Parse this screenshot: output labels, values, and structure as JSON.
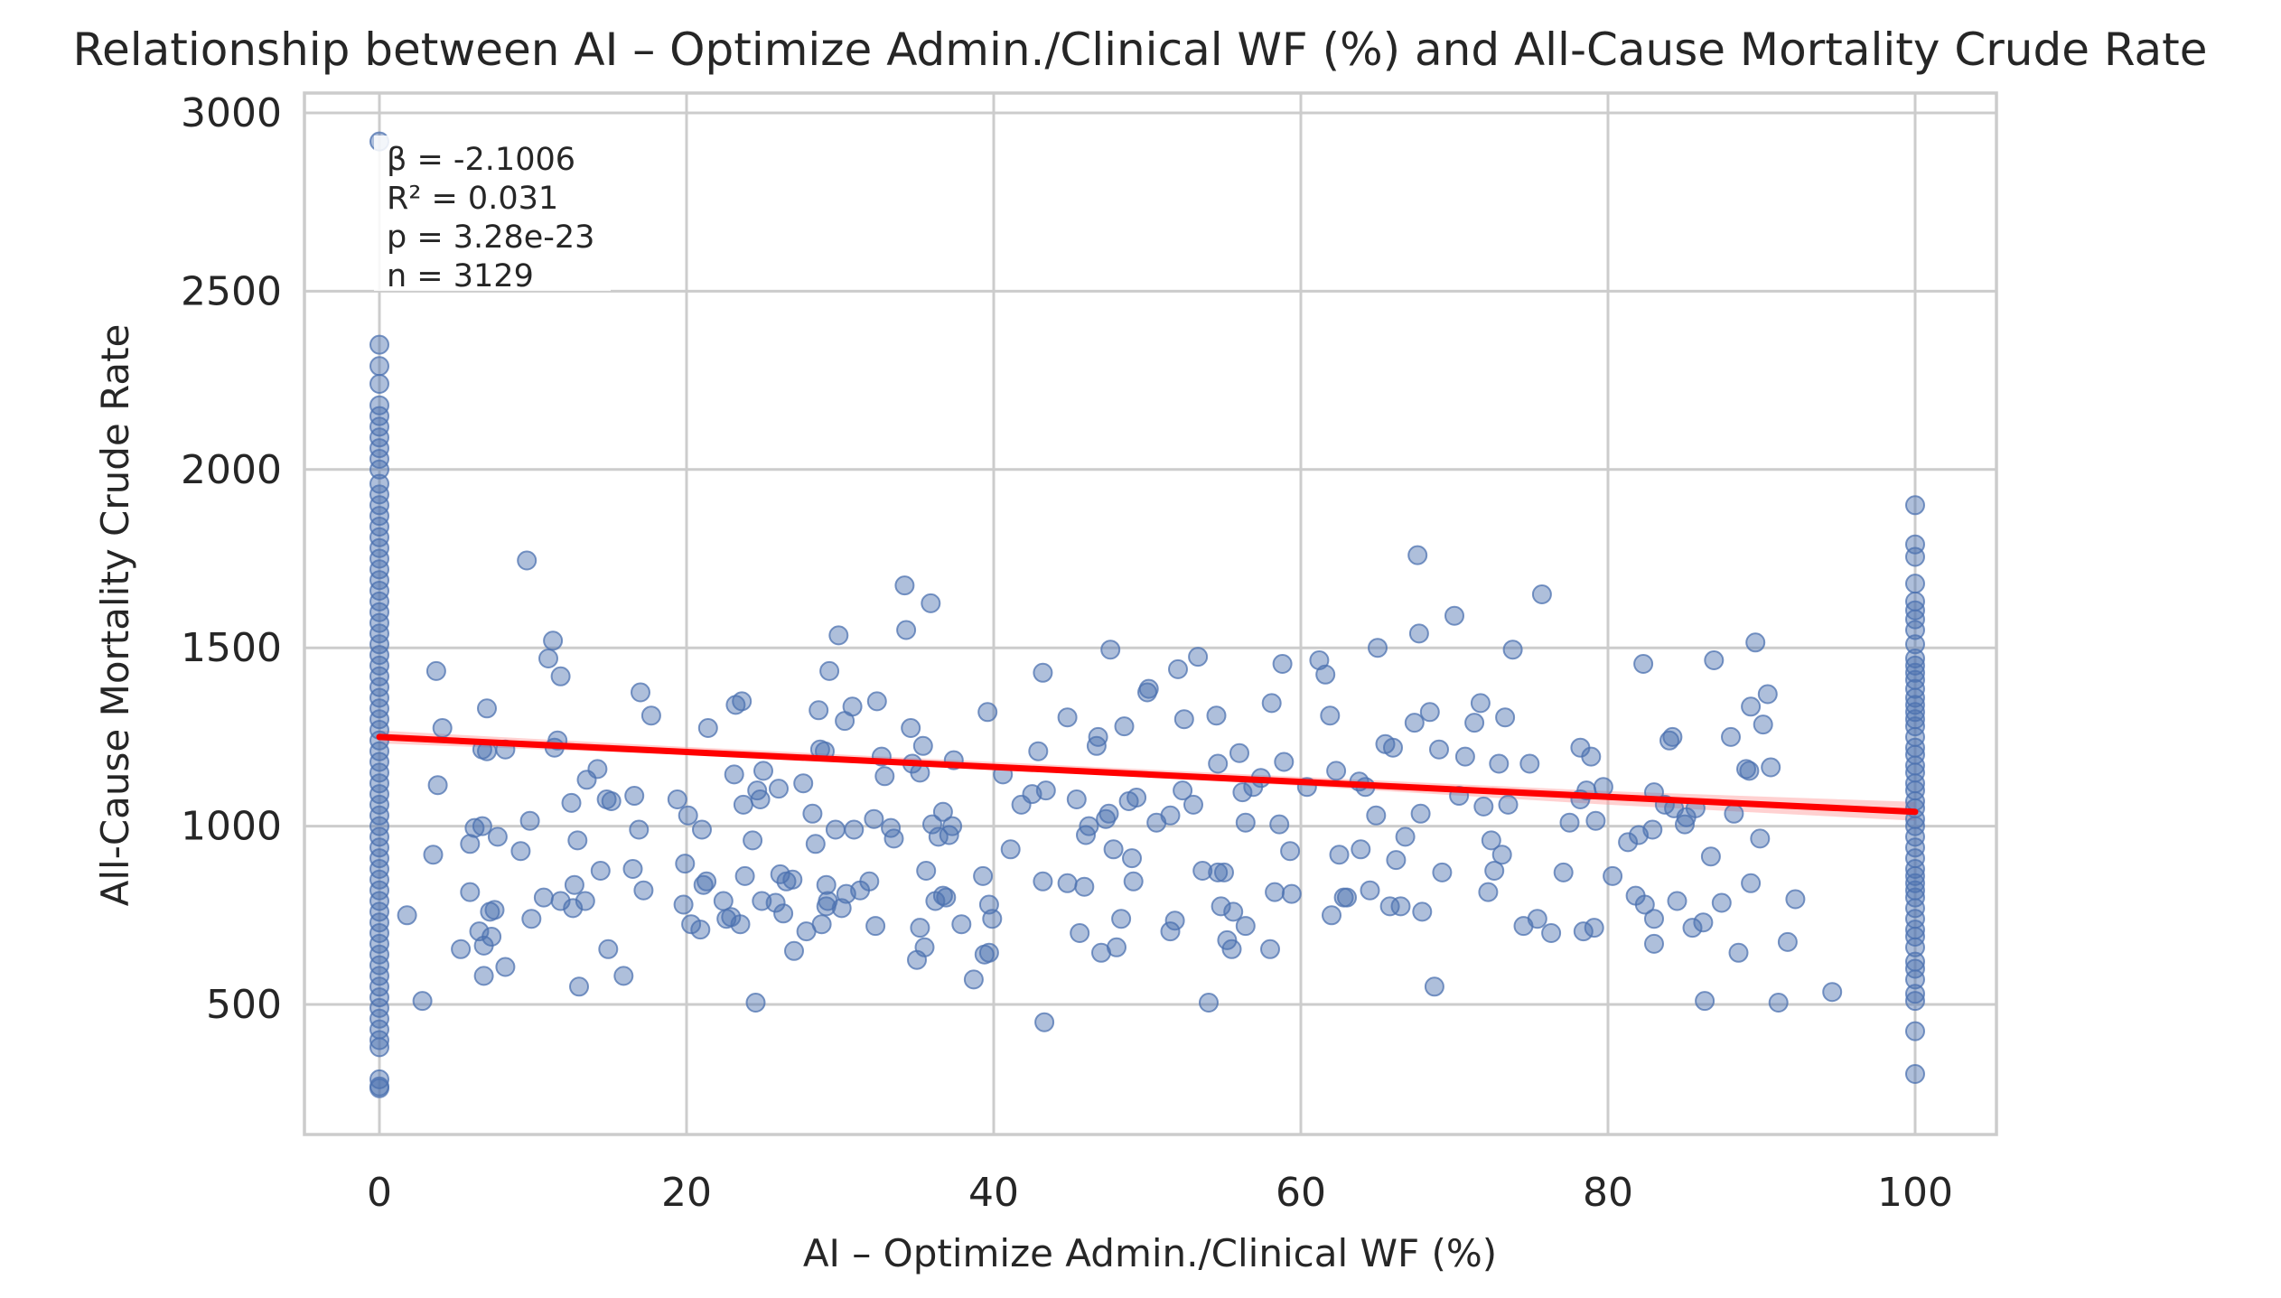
{
  "chart_data": {
    "type": "scatter",
    "title": "Relationship between AI – Optimize Admin./Clinical WF (%) and All-Cause Mortality Crude Rate",
    "xlabel": "AI – Optimize Admin./Clinical WF (%)",
    "ylabel": "All-Cause Mortality Crude Rate",
    "xlim": [
      -5,
      105
    ],
    "ylim": [
      120,
      3050
    ],
    "x_ticks": [
      0,
      20,
      40,
      60,
      80,
      100
    ],
    "y_ticks": [
      500,
      1000,
      1500,
      2000,
      2500,
      3000
    ],
    "grid": true,
    "colors": {
      "points": "#4c72b0",
      "regression_line": "#ff0000",
      "confidence_band": "#ff9999"
    },
    "stats_annotation": [
      "β = -2.1006",
      "R² = 0.031",
      "p = 3.28e-23",
      "n = 3129"
    ],
    "regression": {
      "start": {
        "x": 0,
        "y": 1250
      },
      "end": {
        "x": 100,
        "y": 1040
      },
      "ci": [
        {
          "x": 0,
          "lo": 1232,
          "hi": 1268
        },
        {
          "x": 20,
          "lo": 1200,
          "hi": 1222
        },
        {
          "x": 40,
          "lo": 1160,
          "hi": 1180
        },
        {
          "x": 60,
          "lo": 1113,
          "hi": 1138
        },
        {
          "x": 80,
          "lo": 1060,
          "hi": 1098
        },
        {
          "x": 100,
          "lo": 1015,
          "hi": 1068
        }
      ]
    },
    "points": [
      [
        0,
        2920
      ],
      [
        0,
        2350
      ],
      [
        0,
        2290
      ],
      [
        0,
        2240
      ],
      [
        0,
        2180
      ],
      [
        0,
        2150
      ],
      [
        0,
        2120
      ],
      [
        0,
        2090
      ],
      [
        0,
        2060
      ],
      [
        0,
        2030
      ],
      [
        0,
        2000
      ],
      [
        0,
        1960
      ],
      [
        0,
        1930
      ],
      [
        0,
        1900
      ],
      [
        0,
        1870
      ],
      [
        0,
        1840
      ],
      [
        0,
        1810
      ],
      [
        0,
        1780
      ],
      [
        0,
        1750
      ],
      [
        0,
        1720
      ],
      [
        0,
        1690
      ],
      [
        0,
        1660
      ],
      [
        0,
        1630
      ],
      [
        0,
        1600
      ],
      [
        0,
        1570
      ],
      [
        0,
        1540
      ],
      [
        0,
        1510
      ],
      [
        0,
        1480
      ],
      [
        0,
        1450
      ],
      [
        0,
        1420
      ],
      [
        0,
        1390
      ],
      [
        0,
        1360
      ],
      [
        0,
        1330
      ],
      [
        0,
        1300
      ],
      [
        0,
        1270
      ],
      [
        0,
        1240
      ],
      [
        0,
        1210
      ],
      [
        0,
        1180
      ],
      [
        0,
        1150
      ],
      [
        0,
        1120
      ],
      [
        0,
        1090
      ],
      [
        0,
        1060
      ],
      [
        0,
        1030
      ],
      [
        0,
        1000
      ],
      [
        0,
        970
      ],
      [
        0,
        940
      ],
      [
        0,
        910
      ],
      [
        0,
        880
      ],
      [
        0,
        850
      ],
      [
        0,
        820
      ],
      [
        0,
        790
      ],
      [
        0,
        760
      ],
      [
        0,
        730
      ],
      [
        0,
        700
      ],
      [
        0,
        670
      ],
      [
        0,
        640
      ],
      [
        0,
        610
      ],
      [
        0,
        580
      ],
      [
        0,
        550
      ],
      [
        0,
        520
      ],
      [
        0,
        490
      ],
      [
        0,
        460
      ],
      [
        0,
        430
      ],
      [
        0,
        400
      ],
      [
        0,
        380
      ],
      [
        0,
        290
      ],
      [
        0,
        270
      ],
      [
        0,
        265
      ],
      [
        100,
        1900
      ],
      [
        100,
        1790
      ],
      [
        100,
        1755
      ],
      [
        100,
        1680
      ],
      [
        100,
        1630
      ],
      [
        100,
        1605
      ],
      [
        100,
        1580
      ],
      [
        100,
        1550
      ],
      [
        100,
        1510
      ],
      [
        100,
        1470
      ],
      [
        100,
        1450
      ],
      [
        100,
        1430
      ],
      [
        100,
        1410
      ],
      [
        100,
        1385
      ],
      [
        100,
        1360
      ],
      [
        100,
        1340
      ],
      [
        100,
        1320
      ],
      [
        100,
        1300
      ],
      [
        100,
        1280
      ],
      [
        100,
        1250
      ],
      [
        100,
        1220
      ],
      [
        100,
        1200
      ],
      [
        100,
        1170
      ],
      [
        100,
        1150
      ],
      [
        100,
        1120
      ],
      [
        100,
        1100
      ],
      [
        100,
        1070
      ],
      [
        100,
        1050
      ],
      [
        100,
        1020
      ],
      [
        100,
        1000
      ],
      [
        100,
        970
      ],
      [
        100,
        940
      ],
      [
        100,
        910
      ],
      [
        100,
        880
      ],
      [
        100,
        860
      ],
      [
        100,
        840
      ],
      [
        100,
        820
      ],
      [
        100,
        800
      ],
      [
        100,
        770
      ],
      [
        100,
        740
      ],
      [
        100,
        710
      ],
      [
        100,
        690
      ],
      [
        100,
        660
      ],
      [
        100,
        620
      ],
      [
        100,
        600
      ],
      [
        100,
        570
      ],
      [
        100,
        530
      ],
      [
        100,
        510
      ],
      [
        100,
        425
      ],
      [
        100,
        305
      ],
      [
        1.8,
        750
      ],
      [
        2.8,
        510
      ],
      [
        3.5,
        920
      ],
      [
        3.7,
        1435
      ],
      [
        3.8,
        1115
      ],
      [
        4.1,
        1275
      ],
      [
        5.3,
        655
      ],
      [
        5.9,
        950
      ],
      [
        5.9,
        815
      ],
      [
        6.2,
        995
      ],
      [
        6.5,
        705
      ],
      [
        6.7,
        1000
      ],
      [
        6.7,
        1215
      ],
      [
        6.8,
        665
      ],
      [
        6.8,
        580
      ],
      [
        7.0,
        1330
      ],
      [
        7.0,
        1210
      ],
      [
        7.2,
        760
      ],
      [
        7.3,
        690
      ],
      [
        7.5,
        765
      ],
      [
        7.7,
        970
      ],
      [
        8.2,
        1215
      ],
      [
        8.2,
        605
      ],
      [
        9.2,
        930
      ],
      [
        9.6,
        1745
      ],
      [
        9.8,
        1015
      ],
      [
        9.9,
        740
      ],
      [
        10.7,
        800
      ],
      [
        11.0,
        1470
      ],
      [
        11.3,
        1520
      ],
      [
        11.4,
        1220
      ],
      [
        11.6,
        1240
      ],
      [
        11.8,
        790
      ],
      [
        11.8,
        1420
      ],
      [
        12.5,
        1065
      ],
      [
        12.6,
        770
      ],
      [
        12.7,
        835
      ],
      [
        12.9,
        960
      ],
      [
        13.0,
        550
      ],
      [
        13.4,
        790
      ],
      [
        13.5,
        1130
      ],
      [
        14.2,
        1160
      ],
      [
        14.4,
        875
      ],
      [
        14.8,
        1075
      ],
      [
        14.9,
        655
      ],
      [
        15.1,
        1070
      ],
      [
        15.9,
        580
      ],
      [
        16.5,
        880
      ],
      [
        16.6,
        1085
      ],
      [
        16.9,
        990
      ],
      [
        17.0,
        1375
      ],
      [
        17.2,
        820
      ],
      [
        17.7,
        1310
      ],
      [
        19.4,
        1075
      ],
      [
        19.8,
        780
      ],
      [
        19.9,
        895
      ],
      [
        20.1,
        1030
      ],
      [
        20.3,
        725
      ],
      [
        20.9,
        710
      ],
      [
        21.0,
        990
      ],
      [
        21.1,
        835
      ],
      [
        21.3,
        845
      ],
      [
        21.4,
        1275
      ],
      [
        22.4,
        790
      ],
      [
        22.6,
        740
      ],
      [
        22.9,
        745
      ],
      [
        23.1,
        1145
      ],
      [
        23.2,
        1340
      ],
      [
        23.5,
        725
      ],
      [
        23.6,
        1350
      ],
      [
        23.7,
        1060
      ],
      [
        23.8,
        860
      ],
      [
        24.3,
        960
      ],
      [
        24.5,
        505
      ],
      [
        24.6,
        1100
      ],
      [
        24.8,
        1075
      ],
      [
        24.9,
        790
      ],
      [
        25.0,
        1155
      ],
      [
        25.8,
        785
      ],
      [
        26.0,
        1105
      ],
      [
        26.1,
        865
      ],
      [
        26.3,
        755
      ],
      [
        26.5,
        845
      ],
      [
        26.9,
        850
      ],
      [
        27.0,
        650
      ],
      [
        27.6,
        1120
      ],
      [
        27.8,
        705
      ],
      [
        28.2,
        1035
      ],
      [
        28.4,
        950
      ],
      [
        28.6,
        1325
      ],
      [
        28.7,
        1215
      ],
      [
        28.8,
        725
      ],
      [
        29.0,
        1210
      ],
      [
        29.1,
        775
      ],
      [
        29.1,
        835
      ],
      [
        29.2,
        790
      ],
      [
        29.3,
        1435
      ],
      [
        29.7,
        990
      ],
      [
        29.9,
        1535
      ],
      [
        30.1,
        770
      ],
      [
        30.3,
        1295
      ],
      [
        30.4,
        810
      ],
      [
        30.8,
        1335
      ],
      [
        30.9,
        990
      ],
      [
        31.3,
        820
      ],
      [
        31.9,
        845
      ],
      [
        32.2,
        1020
      ],
      [
        32.3,
        720
      ],
      [
        32.4,
        1350
      ],
      [
        32.7,
        1195
      ],
      [
        32.9,
        1140
      ],
      [
        33.3,
        995
      ],
      [
        33.5,
        965
      ],
      [
        34.2,
        1675
      ],
      [
        34.3,
        1550
      ],
      [
        34.6,
        1275
      ],
      [
        34.7,
        1175
      ],
      [
        35.0,
        625
      ],
      [
        35.2,
        715
      ],
      [
        35.2,
        1150
      ],
      [
        35.4,
        1225
      ],
      [
        35.5,
        660
      ],
      [
        35.6,
        875
      ],
      [
        35.9,
        1625
      ],
      [
        36.0,
        1005
      ],
      [
        36.2,
        790
      ],
      [
        36.4,
        970
      ],
      [
        36.7,
        805
      ],
      [
        36.7,
        1040
      ],
      [
        36.9,
        800
      ],
      [
        37.1,
        975
      ],
      [
        37.3,
        1000
      ],
      [
        37.4,
        1185
      ],
      [
        37.9,
        725
      ],
      [
        38.7,
        570
      ],
      [
        39.3,
        860
      ],
      [
        39.4,
        640
      ],
      [
        39.6,
        1320
      ],
      [
        39.7,
        645
      ],
      [
        39.7,
        780
      ],
      [
        39.9,
        740
      ],
      [
        40.6,
        1145
      ],
      [
        41.1,
        935
      ],
      [
        41.8,
        1060
      ],
      [
        42.5,
        1090
      ],
      [
        42.9,
        1210
      ],
      [
        43.2,
        1430
      ],
      [
        43.2,
        845
      ],
      [
        43.4,
        1100
      ],
      [
        43.3,
        450
      ],
      [
        44.8,
        1305
      ],
      [
        44.8,
        840
      ],
      [
        45.4,
        1075
      ],
      [
        45.6,
        700
      ],
      [
        45.9,
        830
      ],
      [
        46.0,
        975
      ],
      [
        46.2,
        1000
      ],
      [
        46.7,
        1225
      ],
      [
        46.8,
        1250
      ],
      [
        47.0,
        645
      ],
      [
        47.3,
        1020
      ],
      [
        47.5,
        1035
      ],
      [
        47.6,
        1495
      ],
      [
        47.8,
        935
      ],
      [
        48.0,
        660
      ],
      [
        48.3,
        740
      ],
      [
        48.5,
        1280
      ],
      [
        48.8,
        1070
      ],
      [
        49.0,
        910
      ],
      [
        49.1,
        845
      ],
      [
        49.3,
        1080
      ],
      [
        50.0,
        1375
      ],
      [
        50.1,
        1385
      ],
      [
        50.6,
        1010
      ],
      [
        51.5,
        1030
      ],
      [
        51.5,
        705
      ],
      [
        51.8,
        735
      ],
      [
        52.0,
        1440
      ],
      [
        52.3,
        1100
      ],
      [
        52.4,
        1300
      ],
      [
        53.0,
        1060
      ],
      [
        53.3,
        1475
      ],
      [
        53.6,
        875
      ],
      [
        54.0,
        505
      ],
      [
        54.5,
        1310
      ],
      [
        54.6,
        870
      ],
      [
        54.6,
        1175
      ],
      [
        54.8,
        775
      ],
      [
        55.0,
        870
      ],
      [
        55.2,
        680
      ],
      [
        55.5,
        655
      ],
      [
        55.6,
        760
      ],
      [
        56.0,
        1205
      ],
      [
        56.2,
        1095
      ],
      [
        56.4,
        720
      ],
      [
        56.4,
        1010
      ],
      [
        56.9,
        1110
      ],
      [
        57.4,
        1135
      ],
      [
        58.0,
        655
      ],
      [
        58.1,
        1345
      ],
      [
        58.3,
        815
      ],
      [
        58.6,
        1005
      ],
      [
        58.8,
        1455
      ],
      [
        58.9,
        1180
      ],
      [
        59.3,
        930
      ],
      [
        59.4,
        810
      ],
      [
        60.4,
        1110
      ],
      [
        61.2,
        1465
      ],
      [
        61.6,
        1425
      ],
      [
        61.9,
        1310
      ],
      [
        62.0,
        750
      ],
      [
        62.3,
        1155
      ],
      [
        62.5,
        920
      ],
      [
        62.8,
        800
      ],
      [
        63.0,
        800
      ],
      [
        63.8,
        1125
      ],
      [
        63.9,
        935
      ],
      [
        64.2,
        1110
      ],
      [
        64.5,
        820
      ],
      [
        64.9,
        1030
      ],
      [
        65.0,
        1500
      ],
      [
        65.5,
        1230
      ],
      [
        65.8,
        775
      ],
      [
        66.0,
        1220
      ],
      [
        66.2,
        905
      ],
      [
        66.5,
        775
      ],
      [
        66.8,
        970
      ],
      [
        67.4,
        1290
      ],
      [
        67.6,
        1760
      ],
      [
        67.7,
        1540
      ],
      [
        67.8,
        1035
      ],
      [
        67.9,
        760
      ],
      [
        68.4,
        1320
      ],
      [
        68.7,
        550
      ],
      [
        69.0,
        1215
      ],
      [
        69.2,
        870
      ],
      [
        70.0,
        1590
      ],
      [
        70.3,
        1085
      ],
      [
        70.7,
        1195
      ],
      [
        71.3,
        1290
      ],
      [
        71.7,
        1345
      ],
      [
        71.9,
        1055
      ],
      [
        72.2,
        815
      ],
      [
        72.4,
        960
      ],
      [
        72.6,
        875
      ],
      [
        72.9,
        1175
      ],
      [
        73.1,
        920
      ],
      [
        73.3,
        1305
      ],
      [
        73.5,
        1060
      ],
      [
        73.8,
        1495
      ],
      [
        74.5,
        720
      ],
      [
        74.9,
        1175
      ],
      [
        75.4,
        740
      ],
      [
        75.7,
        1650
      ],
      [
        76.3,
        700
      ],
      [
        77.1,
        870
      ],
      [
        77.5,
        1010
      ],
      [
        78.2,
        1220
      ],
      [
        78.2,
        1075
      ],
      [
        78.4,
        705
      ],
      [
        78.6,
        1100
      ],
      [
        78.9,
        1195
      ],
      [
        79.1,
        715
      ],
      [
        79.2,
        1015
      ],
      [
        79.7,
        1110
      ],
      [
        80.3,
        860
      ],
      [
        81.3,
        955
      ],
      [
        81.8,
        805
      ],
      [
        82.0,
        975
      ],
      [
        82.3,
        1455
      ],
      [
        82.4,
        780
      ],
      [
        82.9,
        990
      ],
      [
        83.0,
        1095
      ],
      [
        83.0,
        670
      ],
      [
        83.0,
        740
      ],
      [
        83.7,
        1060
      ],
      [
        84.0,
        1240
      ],
      [
        84.2,
        1250
      ],
      [
        84.3,
        1050
      ],
      [
        84.5,
        790
      ],
      [
        85.0,
        1005
      ],
      [
        85.1,
        1025
      ],
      [
        85.5,
        715
      ],
      [
        85.7,
        1050
      ],
      [
        86.2,
        730
      ],
      [
        86.3,
        510
      ],
      [
        86.7,
        915
      ],
      [
        86.9,
        1465
      ],
      [
        87.4,
        785
      ],
      [
        88.0,
        1250
      ],
      [
        88.2,
        1035
      ],
      [
        88.5,
        645
      ],
      [
        89.0,
        1160
      ],
      [
        89.2,
        1155
      ],
      [
        89.3,
        840
      ],
      [
        89.3,
        1335
      ],
      [
        89.6,
        1515
      ],
      [
        89.9,
        965
      ],
      [
        90.1,
        1285
      ],
      [
        90.4,
        1370
      ],
      [
        90.6,
        1165
      ],
      [
        91.1,
        505
      ],
      [
        91.7,
        675
      ],
      [
        92.2,
        795
      ],
      [
        94.6,
        535
      ]
    ]
  }
}
